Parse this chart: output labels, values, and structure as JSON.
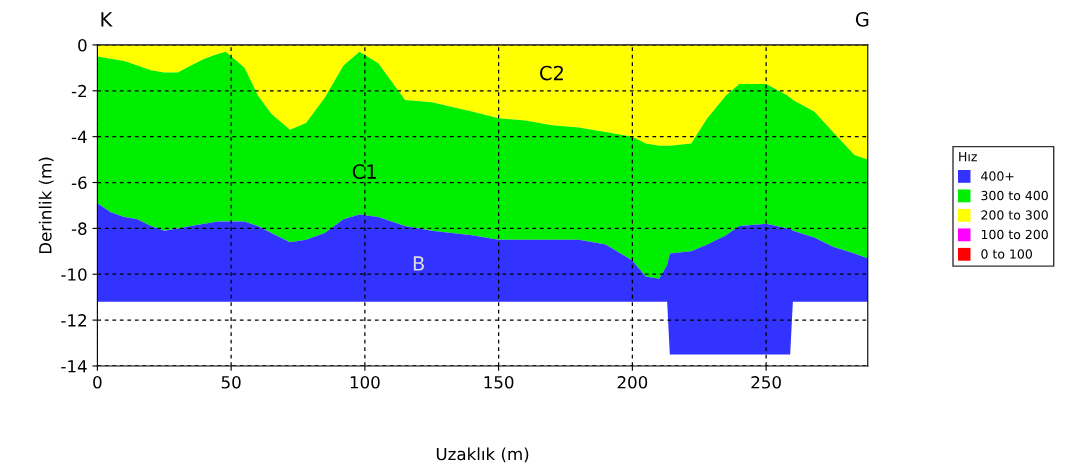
{
  "chart_data": {
    "type": "area",
    "stacked": true,
    "xlabel": "Uzaklık (m)",
    "ylabel": "Derinlik (m)",
    "legend_title": "Hız",
    "legend": "right",
    "grid": true,
    "x": [
      0,
      5,
      10,
      15,
      20,
      25,
      30,
      35,
      40,
      45,
      48,
      55,
      60,
      65,
      72,
      78,
      85,
      92,
      98,
      105,
      110,
      115,
      125,
      140,
      150,
      160,
      170,
      180,
      190,
      200,
      205,
      210,
      213,
      214,
      222,
      228,
      235,
      240,
      250,
      258,
      259,
      260,
      268,
      275,
      283,
      288
    ],
    "xlim": [
      0,
      288
    ],
    "ylim": [
      -14,
      0
    ],
    "xticks": [
      0,
      50,
      100,
      150,
      200,
      250
    ],
    "yticks": [
      -14,
      -12,
      -10,
      -8,
      -6,
      -4,
      -2,
      0
    ],
    "series": [
      {
        "name": "0 to 100",
        "color": "#ff0000",
        "values": [
          null,
          null,
          null,
          null,
          null,
          null,
          null,
          null,
          null,
          null,
          null,
          null,
          null,
          null,
          null,
          null,
          null,
          null,
          null,
          null,
          null,
          null,
          null,
          null,
          null,
          null,
          null,
          null,
          null,
          null,
          null,
          null,
          null,
          null,
          null,
          null,
          null,
          null,
          null,
          null,
          null,
          null,
          null,
          null,
          null,
          null
        ]
      },
      {
        "name": "100 to 200",
        "color": "#ff00ff",
        "values": [
          null,
          null,
          null,
          null,
          null,
          null,
          null,
          null,
          null,
          null,
          null,
          null,
          null,
          null,
          null,
          null,
          null,
          null,
          null,
          null,
          null,
          null,
          null,
          null,
          null,
          null,
          null,
          null,
          null,
          null,
          null,
          null,
          null,
          null,
          null,
          null,
          null,
          null,
          null,
          null,
          null,
          null,
          null,
          null,
          null,
          null
        ]
      },
      {
        "name": "200 to 300",
        "color": "#ffff00",
        "values": [
          -0.5,
          -0.6,
          -0.7,
          -0.9,
          -1.1,
          -1.2,
          -1.2,
          -0.9,
          -0.6,
          -0.4,
          -0.3,
          -1.0,
          -2.2,
          -3.0,
          -3.7,
          -3.4,
          -2.3,
          -0.9,
          -0.3,
          -0.8,
          -1.6,
          -2.4,
          -2.5,
          -2.9,
          -3.2,
          -3.3,
          -3.5,
          -3.6,
          -3.8,
          -4.0,
          -4.3,
          -4.4,
          -4.4,
          -4.4,
          -4.3,
          -3.2,
          -2.2,
          -1.7,
          -1.7,
          -2.2,
          -2.3,
          -2.4,
          -2.9,
          -3.8,
          -4.8,
          -5.0
        ]
      },
      {
        "name": "300 to 400",
        "color": "#00ee00",
        "values": [
          -6.4,
          -6.7,
          -6.8,
          -6.7,
          -6.8,
          -6.9,
          -6.8,
          -7.0,
          -7.2,
          -7.3,
          -7.4,
          -6.7,
          -5.7,
          -5.2,
          -4.9,
          -5.1,
          -5.9,
          -6.7,
          -7.1,
          -6.7,
          -6.1,
          -5.5,
          -5.6,
          -5.4,
          -5.3,
          -5.2,
          -5.0,
          -4.9,
          -4.9,
          -5.4,
          -5.8,
          -5.8,
          -5.2,
          -4.7,
          -4.7,
          -5.5,
          -6.1,
          -6.2,
          -6.1,
          -5.8,
          -5.7,
          -5.7,
          -5.5,
          -5.0,
          -4.3,
          -4.3
        ]
      },
      {
        "name": "400+",
        "color": "#3333ff",
        "values": [
          -4.3,
          -3.9,
          -3.7,
          -3.6,
          -3.3,
          -3.1,
          -3.2,
          -3.3,
          -3.4,
          -3.5,
          -3.5,
          -3.5,
          -3.3,
          -3.0,
          -2.6,
          -2.7,
          -3.0,
          -3.6,
          -3.8,
          -3.7,
          -3.5,
          -3.3,
          -3.1,
          -2.9,
          -2.7,
          -2.7,
          -2.7,
          -2.7,
          -2.5,
          -1.8,
          -1.1,
          -1.0,
          -1.6,
          -4.4,
          -4.5,
          -4.8,
          -5.2,
          -5.6,
          -5.7,
          -5.5,
          -5.5,
          -3.1,
          -2.8,
          -2.4,
          -2.1,
          -1.9
        ]
      }
    ],
    "annotations": [
      "K",
      "G",
      "C2",
      "C1",
      "B"
    ]
  }
}
